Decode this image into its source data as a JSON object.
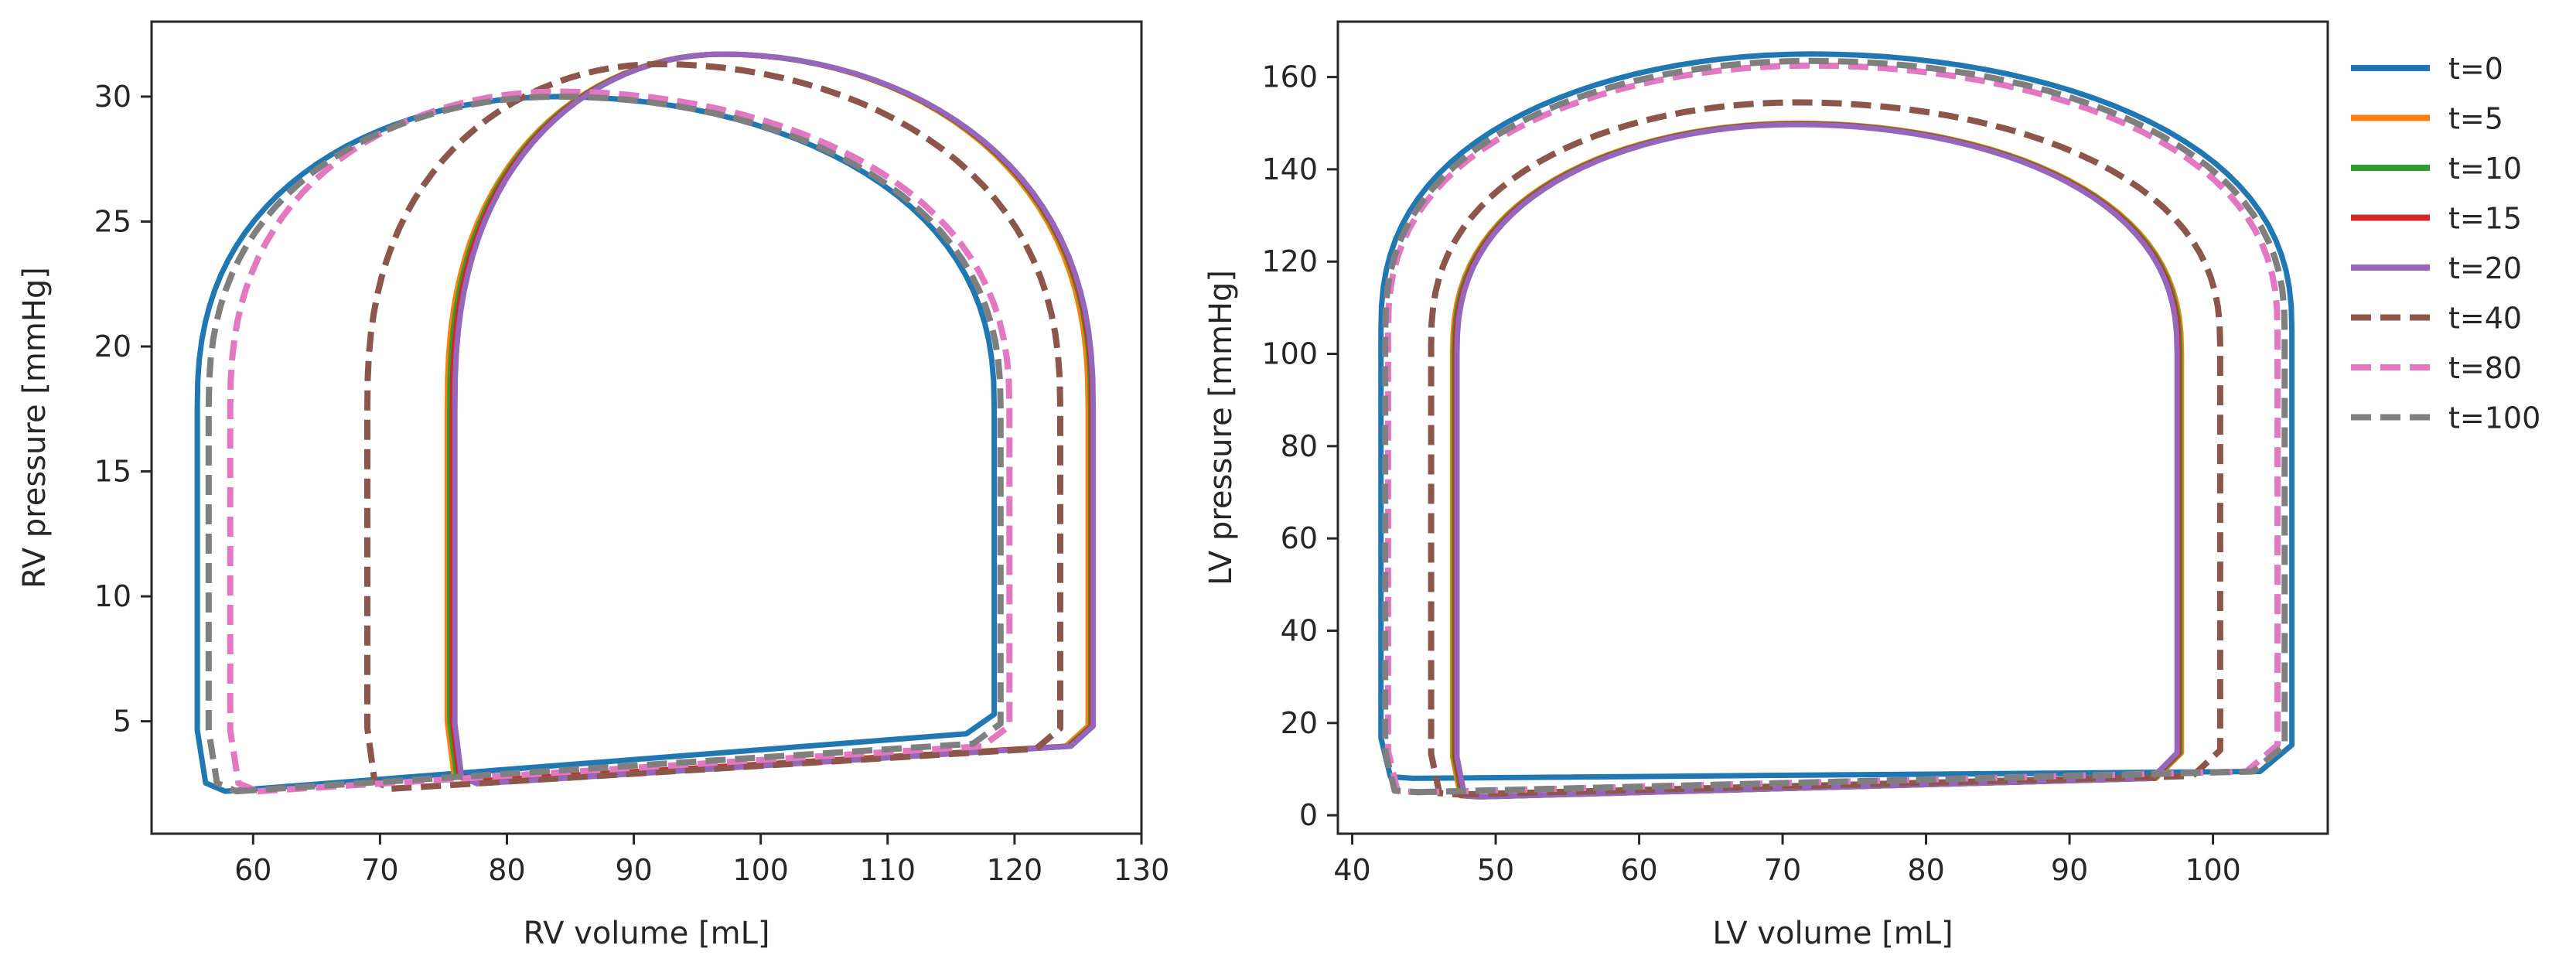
{
  "chart_data": [
    {
      "type": "line",
      "panel": "left",
      "title": "",
      "xlabel": "RV volume [mL]",
      "ylabel": "RV pressure [mmHg]",
      "xlim": [
        52,
        130
      ],
      "ylim": [
        0.5,
        33
      ],
      "xticks": [
        60,
        70,
        80,
        90,
        100,
        110,
        120,
        130
      ],
      "yticks": [
        5,
        10,
        15,
        20,
        25,
        30
      ],
      "grid": false,
      "series": [
        {
          "name": "t=0",
          "color": "#1f77b4",
          "dashed": false,
          "vmin": 55.6,
          "vmax": 118.4,
          "ped": 2.2,
          "pes": 4.5,
          "peak": 30.0,
          "vpeak": 84,
          "trans": 17.5
        },
        {
          "name": "t=5",
          "color": "#ff7f0e",
          "dashed": false,
          "vmin": 75.3,
          "vmax": 125.8,
          "ped": 2.6,
          "pes": 4.0,
          "peak": 31.7,
          "vpeak": 97,
          "trans": 17.5
        },
        {
          "name": "t=10",
          "color": "#2ca02c",
          "dashed": false,
          "vmin": 75.5,
          "vmax": 126.0,
          "ped": 2.6,
          "pes": 4.0,
          "peak": 31.7,
          "vpeak": 97,
          "trans": 17.5
        },
        {
          "name": "t=15",
          "color": "#d62728",
          "dashed": false,
          "vmin": 75.7,
          "vmax": 126.1,
          "ped": 2.6,
          "pes": 4.0,
          "peak": 31.7,
          "vpeak": 97,
          "trans": 17.5
        },
        {
          "name": "t=20",
          "color": "#9467bd",
          "dashed": false,
          "vmin": 75.9,
          "vmax": 126.2,
          "ped": 2.5,
          "pes": 4.0,
          "peak": 31.7,
          "vpeak": 97,
          "trans": 17.5
        },
        {
          "name": "t=40",
          "color": "#8c564b",
          "dashed": true,
          "vmin": 69.0,
          "vmax": 123.6,
          "ped": 2.3,
          "pes": 3.9,
          "peak": 31.3,
          "vpeak": 92,
          "trans": 17.5
        },
        {
          "name": "t=80",
          "color": "#e377c2",
          "dashed": true,
          "vmin": 58.2,
          "vmax": 119.6,
          "ped": 2.2,
          "pes": 4.0,
          "peak": 30.2,
          "vpeak": 84,
          "trans": 17.5
        },
        {
          "name": "t=100",
          "color": "#7f7f7f",
          "dashed": true,
          "vmin": 56.5,
          "vmax": 118.9,
          "ped": 2.2,
          "pes": 4.1,
          "peak": 30.0,
          "vpeak": 84,
          "trans": 17.5
        }
      ]
    },
    {
      "type": "line",
      "panel": "right",
      "title": "",
      "xlabel": "LV volume [mL]",
      "ylabel": "LV pressure [mmHg]",
      "xlim": [
        39,
        108
      ],
      "ylim": [
        -4,
        172
      ],
      "xticks": [
        40,
        50,
        60,
        70,
        80,
        90,
        100
      ],
      "yticks": [
        0,
        20,
        40,
        60,
        80,
        100,
        120,
        140,
        160
      ],
      "grid": false,
      "series": [
        {
          "name": "t=0",
          "color": "#1f77b4",
          "dashed": false,
          "vmin": 42.0,
          "vmax": 105.5,
          "ped": 8.0,
          "pes": 9.5,
          "peak": 165.0,
          "vpeak": 72,
          "trans": 105
        },
        {
          "name": "t=5",
          "color": "#ff7f0e",
          "dashed": false,
          "vmin": 47.0,
          "vmax": 97.8,
          "ped": 4.0,
          "pes": 8.0,
          "peak": 150.0,
          "vpeak": 71,
          "trans": 100
        },
        {
          "name": "t=10",
          "color": "#2ca02c",
          "dashed": false,
          "vmin": 47.1,
          "vmax": 97.7,
          "ped": 4.0,
          "pes": 8.0,
          "peak": 149.9,
          "vpeak": 71,
          "trans": 100
        },
        {
          "name": "t=15",
          "color": "#d62728",
          "dashed": false,
          "vmin": 47.2,
          "vmax": 97.6,
          "ped": 4.0,
          "pes": 8.0,
          "peak": 149.8,
          "vpeak": 71,
          "trans": 100
        },
        {
          "name": "t=20",
          "color": "#9467bd",
          "dashed": false,
          "vmin": 47.3,
          "vmax": 97.5,
          "ped": 4.0,
          "pes": 8.0,
          "peak": 149.7,
          "vpeak": 71,
          "trans": 100
        },
        {
          "name": "t=40",
          "color": "#8c564b",
          "dashed": true,
          "vmin": 45.5,
          "vmax": 100.5,
          "ped": 4.5,
          "pes": 8.5,
          "peak": 154.5,
          "vpeak": 71,
          "trans": 102
        },
        {
          "name": "t=80",
          "color": "#e377c2",
          "dashed": true,
          "vmin": 42.5,
          "vmax": 104.5,
          "ped": 5.0,
          "pes": 9.5,
          "peak": 162.5,
          "vpeak": 72,
          "trans": 105
        },
        {
          "name": "t=100",
          "color": "#7f7f7f",
          "dashed": true,
          "vmin": 42.3,
          "vmax": 105.0,
          "ped": 5.0,
          "pes": 9.5,
          "peak": 163.5,
          "vpeak": 72,
          "trans": 105
        }
      ]
    }
  ],
  "legend": {
    "position": "right",
    "entries": [
      {
        "label": "t=0",
        "color": "#1f77b4",
        "dashed": false
      },
      {
        "label": "t=5",
        "color": "#ff7f0e",
        "dashed": false
      },
      {
        "label": "t=10",
        "color": "#2ca02c",
        "dashed": false
      },
      {
        "label": "t=15",
        "color": "#d62728",
        "dashed": false
      },
      {
        "label": "t=20",
        "color": "#9467bd",
        "dashed": false
      },
      {
        "label": "t=40",
        "color": "#8c564b",
        "dashed": true
      },
      {
        "label": "t=80",
        "color": "#e377c2",
        "dashed": true
      },
      {
        "label": "t=100",
        "color": "#7f7f7f",
        "dashed": true
      }
    ]
  }
}
